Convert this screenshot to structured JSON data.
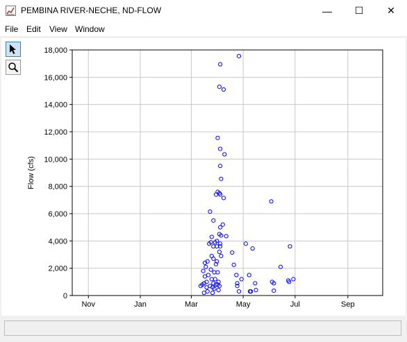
{
  "window": {
    "title": "PEMBINA RIVER-NECHE, ND-FLOW",
    "minimize_glyph": "—",
    "maximize_glyph": "☐",
    "close_glyph": "✕"
  },
  "menu": {
    "items": [
      "File",
      "Edit",
      "View",
      "Window"
    ]
  },
  "toolbar": {
    "tools": [
      {
        "icon": "pointer-icon"
      },
      {
        "icon": "zoom-icon"
      }
    ]
  },
  "status": {
    "text": ""
  },
  "chart_data": {
    "type": "scatter",
    "title": "",
    "ylabel": "Flow (cfs)",
    "xlabel": "",
    "x_ticks": [
      "Nov",
      "Jan",
      "Mar",
      "May",
      "Jul",
      "Sep"
    ],
    "xlim": [
      "Oct 13",
      "Oct 12"
    ],
    "ylim": [
      0,
      18000
    ],
    "y_ticks": [
      "0",
      "2,000",
      "4,000",
      "6,000",
      "8,000",
      "10,000",
      "12,000",
      "14,000",
      "16,000",
      "18,000"
    ],
    "grid": true,
    "marker_color": "#0000ff",
    "points": [
      {
        "x": "Mar 12",
        "y": 700
      },
      {
        "x": "Mar 14",
        "y": 800
      },
      {
        "x": "Mar 15",
        "y": 1800
      },
      {
        "x": "Mar 16",
        "y": 200
      },
      {
        "x": "Mar 16",
        "y": 900
      },
      {
        "x": "Mar 17",
        "y": 2400
      },
      {
        "x": "Mar 17",
        "y": 1400
      },
      {
        "x": "Mar 18",
        "y": 2100
      },
      {
        "x": "Mar 19",
        "y": 600
      },
      {
        "x": "Mar 19",
        "y": 1000
      },
      {
        "x": "Mar 20",
        "y": 2500
      },
      {
        "x": "Mar 20",
        "y": 300
      },
      {
        "x": "Mar 21",
        "y": 1500
      },
      {
        "x": "Mar 22",
        "y": 3800
      },
      {
        "x": "Mar 23",
        "y": 6150
      },
      {
        "x": "Mar 23",
        "y": 700
      },
      {
        "x": "Mar 24",
        "y": 3900
      },
      {
        "x": "Mar 24",
        "y": 1900
      },
      {
        "x": "Mar 25",
        "y": 4300
      },
      {
        "x": "Mar 25",
        "y": 2900
      },
      {
        "x": "Mar 25",
        "y": 1200
      },
      {
        "x": "Mar 26",
        "y": 600
      },
      {
        "x": "Mar 26",
        "y": 200
      },
      {
        "x": "Mar 27",
        "y": 5500
      },
      {
        "x": "Mar 27",
        "y": 3600
      },
      {
        "x": "Mar 27",
        "y": 2700
      },
      {
        "x": "Mar 27",
        "y": 900
      },
      {
        "x": "Mar 28",
        "y": 1700
      },
      {
        "x": "Mar 28",
        "y": 500
      },
      {
        "x": "Mar 29",
        "y": 3900
      },
      {
        "x": "Mar 29",
        "y": 1200
      },
      {
        "x": "Mar 30",
        "y": 7400
      },
      {
        "x": "Mar 30",
        "y": 2300
      },
      {
        "x": "Mar 30",
        "y": 800
      },
      {
        "x": "Mar 31",
        "y": 4000
      },
      {
        "x": "Mar 31",
        "y": 3600
      },
      {
        "x": "Mar 31",
        "y": 2500
      },
      {
        "x": "Apr 1",
        "y": 7600
      },
      {
        "x": "Apr 1",
        "y": 11550
      },
      {
        "x": "Apr 1",
        "y": 1700
      },
      {
        "x": "Apr 1",
        "y": 800
      },
      {
        "x": "Apr 2",
        "y": 1000
      },
      {
        "x": "Apr 2",
        "y": 400
      },
      {
        "x": "Apr 3",
        "y": 15300
      },
      {
        "x": "Apr 3",
        "y": 7500
      },
      {
        "x": "Apr 3",
        "y": 4500
      },
      {
        "x": "Apr 3",
        "y": 3200
      },
      {
        "x": "Apr 3",
        "y": 700
      },
      {
        "x": "Apr 4",
        "y": 16950
      },
      {
        "x": "Apr 4",
        "y": 10750
      },
      {
        "x": "Apr 4",
        "y": 9500
      },
      {
        "x": "Apr 4",
        "y": 7400
      },
      {
        "x": "Apr 4",
        "y": 5000
      },
      {
        "x": "Apr 4",
        "y": 3800
      },
      {
        "x": "Apr 4",
        "y": 3600
      },
      {
        "x": "Apr 5",
        "y": 8550
      },
      {
        "x": "Apr 5",
        "y": 2900
      },
      {
        "x": "Apr 5",
        "y": 4400
      },
      {
        "x": "Apr 7",
        "y": 5200
      },
      {
        "x": "Apr 8",
        "y": 15100
      },
      {
        "x": "Apr 8",
        "y": 7150
      },
      {
        "x": "Apr 9",
        "y": 10350
      },
      {
        "x": "Apr 11",
        "y": 4350
      },
      {
        "x": "Apr 18",
        "y": 3150
      },
      {
        "x": "Apr 20",
        "y": 2250
      },
      {
        "x": "Apr 23",
        "y": 1500
      },
      {
        "x": "Apr 24",
        "y": 900
      },
      {
        "x": "Apr 24",
        "y": 700
      },
      {
        "x": "Apr 26",
        "y": 17550
      },
      {
        "x": "Apr 26",
        "y": 300
      },
      {
        "x": "Apr 29",
        "y": 1200
      },
      {
        "x": "May 4",
        "y": 3800
      },
      {
        "x": "May 8",
        "y": 1500
      },
      {
        "x": "May 9",
        "y": 300
      },
      {
        "x": "May 10",
        "y": 300
      },
      {
        "x": "May 12",
        "y": 3450
      },
      {
        "x": "May 15",
        "y": 900
      },
      {
        "x": "May 16",
        "y": 400
      },
      {
        "x": "Jun 3",
        "y": 6900
      },
      {
        "x": "Jun 4",
        "y": 1000
      },
      {
        "x": "Jun 6",
        "y": 900
      },
      {
        "x": "Jun 6",
        "y": 350
      },
      {
        "x": "Jun 14",
        "y": 2100
      },
      {
        "x": "Jun 23",
        "y": 1100
      },
      {
        "x": "Jun 24",
        "y": 1000
      },
      {
        "x": "Jun 25",
        "y": 3600
      },
      {
        "x": "Jun 29",
        "y": 1200
      }
    ]
  }
}
